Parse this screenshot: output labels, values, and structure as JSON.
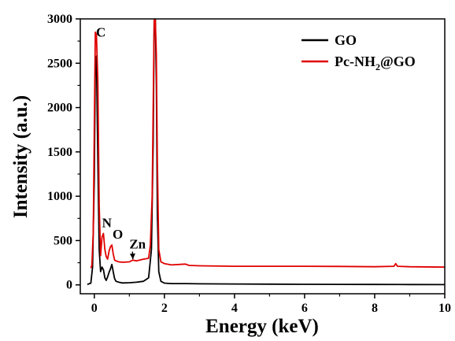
{
  "chart_data": {
    "type": "line",
    "title": "",
    "xlabel": "Energy (keV)",
    "ylabel": "Intensity (a.u.)",
    "xlim": [
      -0.4,
      10
    ],
    "ylim": [
      -100,
      3000
    ],
    "xticks": [
      0,
      2,
      4,
      6,
      8,
      10
    ],
    "yticks": [
      0,
      500,
      1000,
      1500,
      2000,
      2500,
      3000
    ],
    "grid": false,
    "legend_position": "top-right",
    "legend_items": [
      {
        "label_main": "GO",
        "label_sub": "",
        "label_tail": ""
      },
      {
        "label_main": "Pc-NH",
        "label_sub": "2",
        "label_tail": "@GO"
      }
    ],
    "annotations": [
      {
        "text": "C",
        "x": 0.05,
        "y": 2800
      },
      {
        "text": "N",
        "x": 0.22,
        "y": 650
      },
      {
        "text": "O",
        "x": 0.52,
        "y": 520
      },
      {
        "text": "Zn",
        "x": 1.0,
        "y": 410,
        "arrow_to": [
          1.1,
          290
        ]
      }
    ],
    "series": [
      {
        "name": "GO",
        "color": "#000000",
        "x": [
          -0.2,
          -0.1,
          -0.05,
          0.0,
          0.03,
          0.06,
          0.1,
          0.14,
          0.18,
          0.22,
          0.26,
          0.3,
          0.34,
          0.38,
          0.42,
          0.46,
          0.5,
          0.54,
          0.58,
          0.62,
          0.7,
          0.8,
          1.0,
          1.2,
          1.4,
          1.55,
          1.63,
          1.68,
          1.71,
          1.74,
          1.77,
          1.8,
          1.84,
          1.9,
          2.0,
          2.2,
          2.6,
          3.0,
          4.0,
          5.0,
          6.0,
          7.0,
          8.0,
          9.0,
          10.0
        ],
        "y": [
          5,
          20,
          200,
          1200,
          2500,
          2580,
          1400,
          400,
          150,
          200,
          170,
          80,
          50,
          90,
          140,
          180,
          230,
          150,
          70,
          40,
          30,
          22,
          24,
          30,
          40,
          80,
          400,
          1600,
          3000,
          3000,
          2300,
          800,
          150,
          40,
          20,
          15,
          15,
          12,
          10,
          8,
          7,
          6,
          5,
          4,
          3
        ]
      },
      {
        "name": "Pc-NH2@GO",
        "color": "#e00000",
        "x": [
          -0.1,
          -0.07,
          -0.03,
          0.0,
          0.03,
          0.06,
          0.1,
          0.14,
          0.18,
          0.22,
          0.26,
          0.3,
          0.34,
          0.38,
          0.42,
          0.46,
          0.5,
          0.54,
          0.58,
          0.62,
          0.7,
          0.8,
          1.0,
          1.1,
          1.2,
          1.4,
          1.55,
          1.6,
          1.65,
          1.68,
          1.71,
          1.74,
          1.77,
          1.8,
          1.84,
          1.9,
          2.0,
          2.2,
          2.6,
          2.7,
          3.0,
          4.0,
          5.0,
          6.0,
          7.0,
          8.0,
          8.55,
          8.6,
          8.65,
          9.0,
          10.0
        ],
        "y": [
          190,
          220,
          600,
          1800,
          2850,
          2820,
          2300,
          900,
          330,
          540,
          580,
          400,
          320,
          290,
          380,
          430,
          450,
          350,
          280,
          270,
          260,
          255,
          260,
          280,
          270,
          290,
          300,
          450,
          1000,
          2000,
          3000,
          3000,
          2600,
          1400,
          400,
          260,
          240,
          225,
          235,
          220,
          215,
          210,
          210,
          210,
          208,
          205,
          210,
          240,
          210,
          205,
          200
        ]
      }
    ]
  }
}
